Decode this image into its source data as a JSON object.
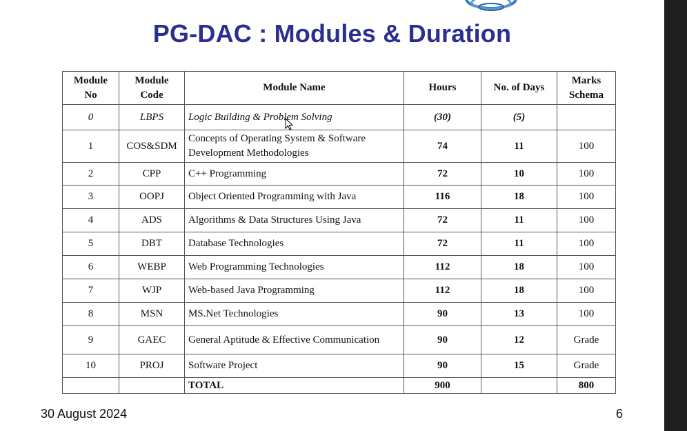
{
  "slide": {
    "title": "PG-DAC : Modules & Duration",
    "date": "30 August 2024",
    "page_number": "6"
  },
  "table": {
    "headers": {
      "module_no": "Module No",
      "module_code": "Module Code",
      "module_name": "Module Name",
      "hours": "Hours",
      "days": "No. of Days",
      "marks": "Marks Schema"
    },
    "rows": [
      {
        "no": "0",
        "code": "LBPS",
        "name": "Logic Building & Problem Solving",
        "hours": "(30)",
        "days": "(5)",
        "marks": ""
      },
      {
        "no": "1",
        "code": "COS&SDM",
        "name": "Concepts of Operating System  & Software Development Methodologies",
        "hours": "74",
        "days": "11",
        "marks": "100"
      },
      {
        "no": "2",
        "code": "CPP",
        "name": "C++ Programming",
        "hours": "72",
        "days": "10",
        "marks": "100"
      },
      {
        "no": "3",
        "code": "OOPJ",
        "name": "Object Oriented Programming with Java",
        "hours": "116",
        "days": "18",
        "marks": "100"
      },
      {
        "no": "4",
        "code": "ADS",
        "name": "Algorithms & Data Structures Using Java",
        "hours": "72",
        "days": "11",
        "marks": "100"
      },
      {
        "no": "5",
        "code": "DBT",
        "name": "Database Technologies",
        "hours": "72",
        "days": "11",
        "marks": "100"
      },
      {
        "no": "6",
        "code": "WEBP",
        "name": "Web Programming Technologies",
        "hours": "112",
        "days": "18",
        "marks": "100"
      },
      {
        "no": "7",
        "code": "WJP",
        "name": "Web-based Java Programming",
        "hours": "112",
        "days": "18",
        "marks": "100"
      },
      {
        "no": "8",
        "code": "MSN",
        "name": "MS.Net Technologies",
        "hours": "90",
        "days": "13",
        "marks": "100"
      },
      {
        "no": "9",
        "code": "GAEC",
        "name": "General Aptitude & Effective Communication",
        "hours": "90",
        "days": "12",
        "marks": "Grade"
      },
      {
        "no": "10",
        "code": "PROJ",
        "name": "Software Project",
        "hours": "90",
        "days": "15",
        "marks": "Grade"
      }
    ],
    "total": {
      "label": "TOTAL",
      "hours": "900",
      "marks": "800"
    }
  },
  "colors": {
    "title": "#2b2f8f",
    "border": "#555555",
    "logo": "#3a7ec2"
  },
  "icons": {
    "logo": "institute-logo",
    "cursor": "mouse-cursor-icon"
  }
}
